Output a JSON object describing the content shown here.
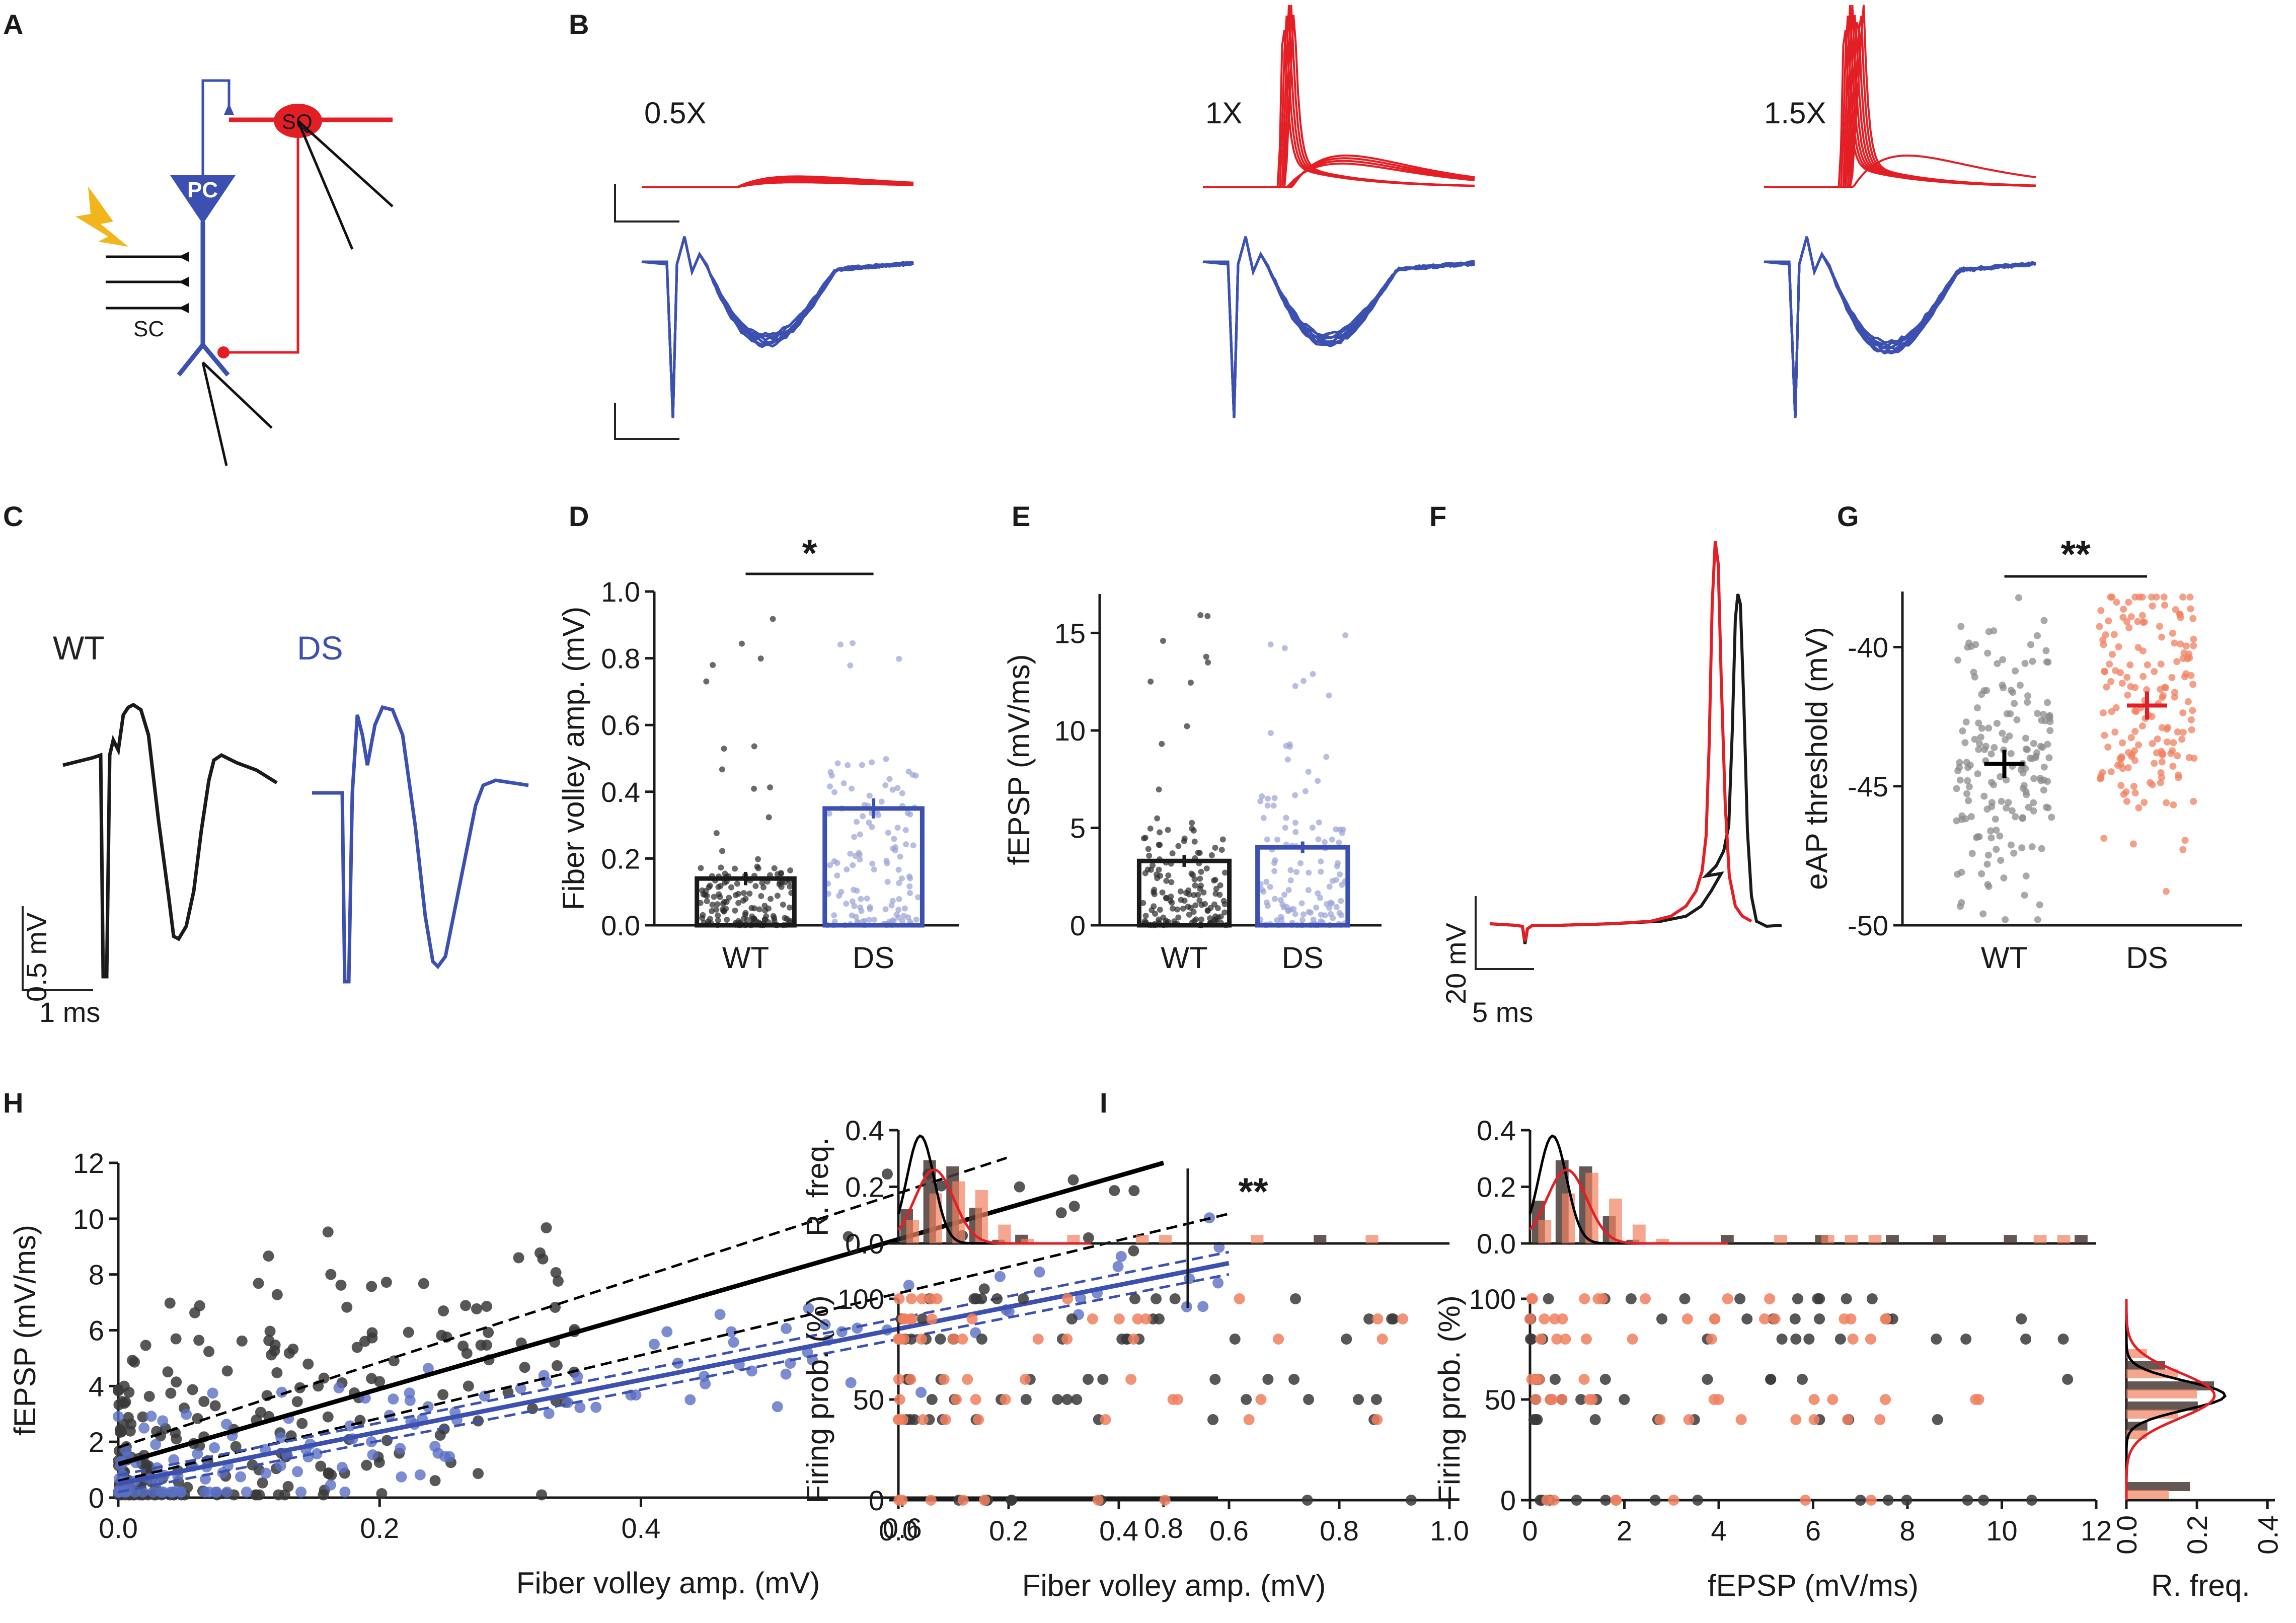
{
  "panels": {
    "A": "A",
    "B": "B",
    "C": "C",
    "D": "D",
    "E": "E",
    "F": "F",
    "G": "G",
    "H": "H",
    "I": "I"
  },
  "colors": {
    "wt": "#1a1a1a",
    "ds": "#3b50b0",
    "red": "#e31e24",
    "salmon": "#f08060",
    "dsLight": "#9aa3d6",
    "wtGray": "#8c8c8c",
    "bolt": "#f2b51b"
  },
  "schematic": {
    "sq": "SQ",
    "pc": "PC",
    "sc": "SC"
  },
  "traces": {
    "labels": [
      "0.5X",
      "1X",
      "1.5X"
    ]
  },
  "panelC": {
    "wt": "WT",
    "ds": "DS",
    "scale_v": "0.5 mV",
    "scale_t": "1 ms"
  },
  "panelF": {
    "scale_v": "20 mV",
    "scale_t": "5 ms"
  },
  "chart_data": [
    {
      "panel": "D",
      "type": "bar",
      "categories": [
        "WT",
        "DS"
      ],
      "values": [
        0.14,
        0.35
      ],
      "errors": [
        0.02,
        0.03
      ],
      "ylabel": "Fiber volley amp. (mV)",
      "ylim": [
        0,
        1.0
      ],
      "yticks": [
        "0.0",
        "0.2",
        "0.4",
        "0.6",
        "0.8",
        "1.0"
      ],
      "significance": "*"
    },
    {
      "panel": "E",
      "type": "bar",
      "categories": [
        "WT",
        "DS"
      ],
      "values": [
        3.3,
        4.0
      ],
      "errors": [
        0.3,
        0.3
      ],
      "ylabel": "fEPSP (mV/ms)",
      "ylim": [
        0,
        17
      ],
      "yticks": [
        "0",
        "5",
        "10",
        "15"
      ]
    },
    {
      "panel": "G",
      "type": "scatter",
      "categories": [
        "WT",
        "DS"
      ],
      "means": [
        -44.2,
        -42.1
      ],
      "ylabel": "eAP threshold (mV)",
      "ylim": [
        -50,
        -38
      ],
      "yticks": [
        "-40",
        "-45",
        "-50"
      ],
      "significance": "**"
    },
    {
      "panel": "H",
      "type": "scatter",
      "xlabel": "Fiber volley amp. (mV)",
      "ylabel": "fEPSP (mV/ms)",
      "xlim": [
        0,
        0.85
      ],
      "ylim": [
        0,
        12
      ],
      "xticks": [
        "0.0",
        "0.2",
        "0.4",
        "0.6",
        "0.8"
      ],
      "yticks": [
        "0",
        "2",
        "4",
        "6",
        "8",
        "10",
        "12"
      ],
      "fits": [
        {
          "name": "WT",
          "intercept": 1.2,
          "slope": 13.5
        },
        {
          "name": "DS",
          "intercept": 0.5,
          "slope": 9.3
        }
      ],
      "significance": "**"
    },
    {
      "panel": "I-left",
      "type": "scatter",
      "xlabel": "Fiber volley amp. (mV)",
      "ylabel": "Firing prob. (%)",
      "xlim": [
        0,
        1.0
      ],
      "ylim": [
        0,
        100
      ],
      "xticks": [
        "0.0",
        "0.2",
        "0.4",
        "0.6",
        "0.8",
        "1.0"
      ],
      "yticks": [
        "0",
        "50",
        "100"
      ],
      "hist_ylabel": "R. freq.",
      "hist_yticks": [
        "0.0",
        "0.2",
        "0.4"
      ]
    },
    {
      "panel": "I-middle",
      "type": "scatter",
      "xlabel": "fEPSP (mV/ms)",
      "ylabel": "Firing prob. (%)",
      "xlim": [
        0,
        12
      ],
      "ylim": [
        0,
        100
      ],
      "xticks": [
        "0",
        "2",
        "4",
        "6",
        "8",
        "10",
        "12"
      ],
      "yticks": [
        "0",
        "50",
        "100"
      ],
      "hist_yticks": [
        "0.0",
        "0.2",
        "0.4"
      ]
    },
    {
      "panel": "I-right",
      "type": "bar",
      "orientation": "horizontal",
      "xlabel": "R. freq.",
      "xticks": [
        "0.0",
        "0.2",
        "0.4"
      ]
    }
  ]
}
